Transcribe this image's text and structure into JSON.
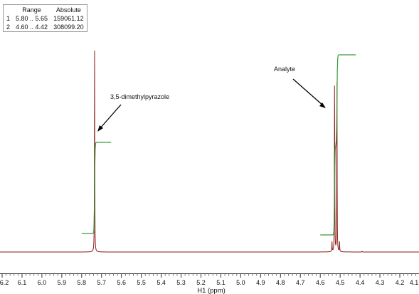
{
  "integral_table": {
    "headers": [
      "",
      "Range",
      "Absolute"
    ],
    "rows": [
      {
        "index": "1",
        "range": "5.80 .. 5.65",
        "absolute": "159061.12"
      },
      {
        "index": "2",
        "range": "4.60 .. 4.42",
        "absolute": "308099.20"
      }
    ]
  },
  "chart_data": {
    "type": "line",
    "xlabel": "H1 (ppm)",
    "xlim": [
      6.2,
      4.1
    ],
    "x_reversed": true,
    "ticks": [
      6.2,
      6.1,
      6.0,
      5.9,
      5.8,
      5.7,
      5.6,
      5.5,
      5.4,
      5.3,
      5.2,
      5.1,
      5.0,
      4.9,
      4.8,
      4.7,
      4.6,
      4.5,
      4.4,
      4.3,
      4.2,
      4.1
    ],
    "tick_labels": [
      "6.2",
      "6.1",
      "6.0",
      "5.9",
      "5.8",
      "5.7",
      "5.6",
      "5.5",
      "5.4",
      "5.3",
      "5.2",
      "5.1",
      "5.0",
      "4.9",
      "4.8",
      "4.7",
      "4.6",
      "4.5",
      "4.4",
      "4.3",
      "4.2",
      "4.1"
    ],
    "series": [
      {
        "kind": "spectrum",
        "color": "#8b1a1a",
        "peaks": [
          {
            "ppm": 5.735,
            "height": 1.0
          },
          {
            "ppm": 4.541,
            "height": 0.05
          },
          {
            "ppm": 4.528,
            "height": 0.885
          },
          {
            "ppm": 4.516,
            "height": 0.9
          },
          {
            "ppm": 4.503,
            "height": 0.05
          },
          {
            "ppm": 4.39,
            "height": 0.004
          }
        ]
      },
      {
        "kind": "integral",
        "color": "#3a9a3a",
        "segments": [
          {
            "from": 5.8,
            "to": 5.65,
            "value": 159061.12
          },
          {
            "from": 4.6,
            "to": 4.42,
            "value": 308099.2
          }
        ]
      }
    ],
    "annotations": [
      {
        "text": "3,5-dimethylpyrazole",
        "target_ppm": 5.735
      },
      {
        "text": "Analyte",
        "target_ppm": 4.528
      }
    ]
  }
}
